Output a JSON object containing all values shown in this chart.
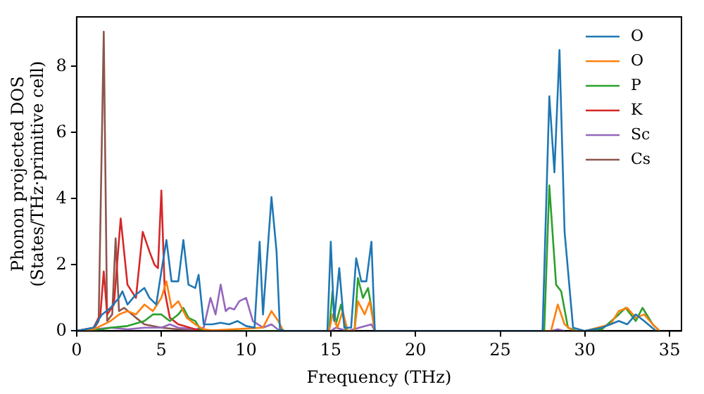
{
  "chart_data": {
    "type": "line",
    "xlabel": "Frequency (THz)",
    "ylabel": "Phonon projected DOS\n(States/THz·primitive cell)",
    "xlim": [
      0,
      35.7
    ],
    "ylim": [
      0,
      9.5
    ],
    "xticks": [
      0,
      5,
      10,
      15,
      20,
      25,
      30,
      35
    ],
    "yticks": [
      0,
      2,
      4,
      6,
      8
    ],
    "grid": false,
    "legend": "top right",
    "marker": "none",
    "line_style": "solid",
    "series": [
      {
        "name": "O",
        "color": "#1f77b4",
        "x": [
          0,
          1,
          1.5,
          2,
          2.5,
          2.7,
          3,
          3.5,
          4,
          4.3,
          4.7,
          5,
          5.3,
          5.6,
          6,
          6.3,
          6.6,
          7,
          7.2,
          7.5,
          8,
          8.5,
          9,
          9.5,
          10,
          10.5,
          10.8,
          11,
          11.5,
          11.8,
          12,
          12.3,
          14.8,
          15,
          15.2,
          15.5,
          15.8,
          16.2,
          16.5,
          16.8,
          17.1,
          17.4,
          17.6,
          27.5,
          27.9,
          28.2,
          28.5,
          28.8,
          29.3,
          30,
          31,
          32,
          32.5,
          33,
          33.5,
          34.2
        ],
        "values": [
          0,
          0.1,
          0.5,
          0.7,
          1,
          1.2,
          0.8,
          1.1,
          1.3,
          1,
          0.8,
          1.8,
          2.75,
          1.5,
          1.5,
          2.75,
          1.4,
          1.3,
          1.7,
          0.2,
          0.2,
          0.25,
          0.2,
          0.3,
          0.15,
          0.1,
          2.7,
          0.5,
          4.05,
          2.4,
          0.05,
          0,
          0,
          2.7,
          0.3,
          1.9,
          0.1,
          0.1,
          2.2,
          1.5,
          1.5,
          2.7,
          0,
          0,
          7.1,
          4.8,
          8.5,
          3,
          0.1,
          0,
          0.1,
          0.3,
          0.2,
          0.5,
          0.3,
          0
        ]
      },
      {
        "name": "O",
        "color": "#ff7f0e",
        "x": [
          0,
          1,
          2,
          2.5,
          3,
          3.5,
          4,
          4.5,
          5,
          5.3,
          5.6,
          6,
          6.5,
          7,
          7.5,
          8,
          11,
          11.5,
          11.9,
          12.2,
          14.9,
          15.1,
          15.4,
          15.7,
          16,
          16.4,
          16.6,
          17,
          17.3,
          17.6,
          28,
          28.4,
          28.8,
          29.3,
          30,
          31.5,
          32,
          32.5,
          33,
          33.5,
          34,
          34.4
        ],
        "values": [
          0,
          0.05,
          0.3,
          0.5,
          0.6,
          0.5,
          0.8,
          0.6,
          1,
          1.5,
          0.7,
          0.9,
          0.4,
          0.2,
          0.05,
          0.02,
          0.1,
          0.6,
          0.3,
          0,
          0,
          0.5,
          0.1,
          0.6,
          0,
          0,
          0.9,
          0.5,
          0.9,
          0,
          0,
          0.8,
          0.2,
          0,
          0,
          0.2,
          0.6,
          0.7,
          0.4,
          0.5,
          0.2,
          0
        ]
      },
      {
        "name": "P",
        "color": "#2ca02c",
        "x": [
          0,
          1.5,
          2,
          3,
          4,
          4.5,
          5,
          5.5,
          6,
          6.3,
          6.6,
          7,
          7.3,
          8,
          14.9,
          15.1,
          15.3,
          15.6,
          15.9,
          16.4,
          16.6,
          16.9,
          17.2,
          17.4,
          17.6,
          27.6,
          27.9,
          28.3,
          28.6,
          29,
          29.5,
          30,
          31,
          32,
          32.4,
          33,
          33.4,
          34,
          34.4
        ],
        "values": [
          0,
          0.05,
          0.1,
          0.15,
          0.3,
          0.5,
          0.5,
          0.3,
          0.5,
          0.7,
          0.4,
          0.3,
          0.05,
          0,
          0,
          1.2,
          0.2,
          0.8,
          0,
          0,
          1.6,
          1,
          1.3,
          0.7,
          0,
          0,
          4.4,
          1.4,
          1.2,
          0.1,
          0,
          0,
          0.05,
          0.5,
          0.7,
          0.3,
          0.7,
          0.2,
          0
        ]
      },
      {
        "name": "K",
        "color": "#d62728",
        "x": [
          0,
          1,
          1.4,
          1.6,
          1.8,
          2.2,
          2.6,
          3,
          3.5,
          3.9,
          4.3,
          4.6,
          4.8,
          5,
          5.2,
          5.5,
          6,
          7,
          8
        ],
        "values": [
          0,
          0.1,
          0.5,
          1.8,
          0.5,
          0.8,
          3.4,
          1.4,
          1,
          3,
          2.4,
          2,
          1.9,
          4.25,
          1.2,
          0.4,
          0.2,
          0.05,
          0
        ]
      },
      {
        "name": "Sc",
        "color": "#9467bd",
        "x": [
          0,
          1,
          2,
          3,
          4,
          5,
          5.5,
          6,
          7,
          7.5,
          7.9,
          8.2,
          8.5,
          8.8,
          9,
          9.3,
          9.6,
          10,
          10.4,
          11,
          11.5,
          12,
          15,
          15.3,
          16,
          17.4,
          17.6,
          28,
          28.4,
          28.8
        ],
        "values": [
          0,
          0.05,
          0.1,
          0.05,
          0.1,
          0.1,
          0.2,
          0.1,
          0.05,
          0.1,
          1,
          0.5,
          1.4,
          0.6,
          0.7,
          0.65,
          0.9,
          1,
          0.3,
          0.1,
          0.2,
          0,
          0,
          0.1,
          0,
          0.2,
          0,
          0,
          0.05,
          0
        ]
      },
      {
        "name": "Cs",
        "color": "#8c564b",
        "x": [
          0,
          1,
          1.3,
          1.6,
          1.8,
          2.1,
          2.3,
          2.5,
          2.8,
          3.5,
          4,
          5,
          6,
          8
        ],
        "values": [
          0,
          0.05,
          0.3,
          9.05,
          0.3,
          0.5,
          2.8,
          0.6,
          0.7,
          0.4,
          0.2,
          0.1,
          0.05,
          0
        ]
      }
    ]
  }
}
